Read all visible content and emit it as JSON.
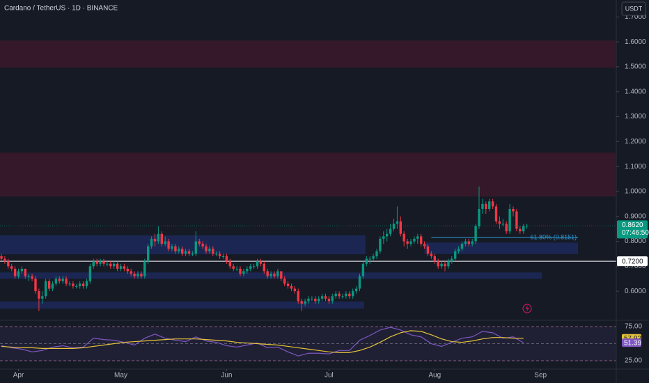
{
  "chart_data": {
    "type": "candlestick",
    "title": "Cardano / TetherUS · 1D · BINANCE",
    "currency": "USDT",
    "up_color": "#089981",
    "down_color": "#f23645",
    "grid": false,
    "ylim": [
      0.483,
      1.768
    ],
    "yticks": [
      {
        "value": 0.6,
        "label": "0.6000"
      },
      {
        "value": 0.7,
        "label": "0.7000"
      },
      {
        "value": 0.8,
        "label": "0.8000"
      },
      {
        "value": 0.9,
        "label": "0.9000"
      },
      {
        "value": 1.0,
        "label": "1.0000"
      },
      {
        "value": 1.1,
        "label": "1.1000"
      },
      {
        "value": 1.2,
        "label": "1.2000"
      },
      {
        "value": 1.3,
        "label": "1.3000"
      },
      {
        "value": 1.4,
        "label": "1.4000"
      },
      {
        "value": 1.5,
        "label": "1.5000"
      },
      {
        "value": 1.6,
        "label": "1.6000"
      },
      {
        "value": 1.7,
        "label": "1.7000"
      }
    ],
    "xticks": [
      {
        "value": 5,
        "label": "Apr"
      },
      {
        "value": 35,
        "label": "May"
      },
      {
        "value": 66,
        "label": "Jun"
      },
      {
        "value": 96,
        "label": "Jul"
      },
      {
        "value": 127,
        "label": "Aug"
      },
      {
        "value": 158,
        "label": "Sep"
      }
    ],
    "ohlc": [
      [
        0.74,
        0.75,
        0.72,
        0.73
      ],
      [
        0.73,
        0.74,
        0.71,
        0.72
      ],
      [
        0.72,
        0.73,
        0.69,
        0.7
      ],
      [
        0.7,
        0.71,
        0.68,
        0.69
      ],
      [
        0.69,
        0.7,
        0.65,
        0.66
      ],
      [
        0.66,
        0.69,
        0.65,
        0.68
      ],
      [
        0.68,
        0.7,
        0.67,
        0.69
      ],
      [
        0.69,
        0.69,
        0.65,
        0.66
      ],
      [
        0.66,
        0.67,
        0.64,
        0.66
      ],
      [
        0.66,
        0.67,
        0.64,
        0.65
      ],
      [
        0.65,
        0.66,
        0.59,
        0.6
      ],
      [
        0.6,
        0.61,
        0.52,
        0.57
      ],
      [
        0.57,
        0.6,
        0.55,
        0.58
      ],
      [
        0.58,
        0.65,
        0.57,
        0.64
      ],
      [
        0.64,
        0.65,
        0.6,
        0.61
      ],
      [
        0.61,
        0.64,
        0.6,
        0.63
      ],
      [
        0.63,
        0.66,
        0.62,
        0.65
      ],
      [
        0.65,
        0.66,
        0.63,
        0.64
      ],
      [
        0.64,
        0.66,
        0.63,
        0.65
      ],
      [
        0.65,
        0.66,
        0.62,
        0.63
      ],
      [
        0.63,
        0.64,
        0.62,
        0.63
      ],
      [
        0.63,
        0.64,
        0.61,
        0.62
      ],
      [
        0.62,
        0.63,
        0.61,
        0.62
      ],
      [
        0.62,
        0.64,
        0.61,
        0.63
      ],
      [
        0.63,
        0.64,
        0.61,
        0.62
      ],
      [
        0.62,
        0.65,
        0.61,
        0.64
      ],
      [
        0.64,
        0.71,
        0.63,
        0.7
      ],
      [
        0.7,
        0.73,
        0.69,
        0.72
      ],
      [
        0.72,
        0.73,
        0.7,
        0.71
      ],
      [
        0.71,
        0.73,
        0.7,
        0.72
      ],
      [
        0.72,
        0.73,
        0.7,
        0.71
      ],
      [
        0.71,
        0.72,
        0.7,
        0.71
      ],
      [
        0.71,
        0.72,
        0.69,
        0.7
      ],
      [
        0.7,
        0.72,
        0.69,
        0.71
      ],
      [
        0.71,
        0.72,
        0.68,
        0.69
      ],
      [
        0.69,
        0.71,
        0.68,
        0.7
      ],
      [
        0.7,
        0.71,
        0.68,
        0.69
      ],
      [
        0.69,
        0.7,
        0.67,
        0.68
      ],
      [
        0.68,
        0.69,
        0.66,
        0.67
      ],
      [
        0.67,
        0.68,
        0.65,
        0.66
      ],
      [
        0.66,
        0.68,
        0.65,
        0.67
      ],
      [
        0.67,
        0.68,
        0.65,
        0.66
      ],
      [
        0.66,
        0.73,
        0.65,
        0.72
      ],
      [
        0.72,
        0.79,
        0.71,
        0.78
      ],
      [
        0.78,
        0.82,
        0.77,
        0.81
      ],
      [
        0.81,
        0.83,
        0.78,
        0.8
      ],
      [
        0.8,
        0.86,
        0.79,
        0.83
      ],
      [
        0.83,
        0.84,
        0.78,
        0.79
      ],
      [
        0.79,
        0.82,
        0.78,
        0.8
      ],
      [
        0.8,
        0.81,
        0.76,
        0.77
      ],
      [
        0.77,
        0.79,
        0.76,
        0.78
      ],
      [
        0.78,
        0.79,
        0.75,
        0.76
      ],
      [
        0.76,
        0.78,
        0.75,
        0.77
      ],
      [
        0.77,
        0.78,
        0.74,
        0.75
      ],
      [
        0.75,
        0.77,
        0.74,
        0.76
      ],
      [
        0.76,
        0.77,
        0.74,
        0.75
      ],
      [
        0.75,
        0.76,
        0.74,
        0.75
      ],
      [
        0.75,
        0.84,
        0.74,
        0.8
      ],
      [
        0.8,
        0.81,
        0.78,
        0.79
      ],
      [
        0.79,
        0.8,
        0.77,
        0.78
      ],
      [
        0.78,
        0.79,
        0.75,
        0.76
      ],
      [
        0.76,
        0.78,
        0.75,
        0.77
      ],
      [
        0.77,
        0.78,
        0.74,
        0.75
      ],
      [
        0.75,
        0.76,
        0.74,
        0.75
      ],
      [
        0.75,
        0.76,
        0.73,
        0.74
      ],
      [
        0.74,
        0.75,
        0.73,
        0.74
      ],
      [
        0.74,
        0.75,
        0.71,
        0.72
      ],
      [
        0.72,
        0.73,
        0.69,
        0.7
      ],
      [
        0.7,
        0.71,
        0.68,
        0.69
      ],
      [
        0.69,
        0.7,
        0.68,
        0.69
      ],
      [
        0.69,
        0.7,
        0.66,
        0.67
      ],
      [
        0.67,
        0.69,
        0.66,
        0.68
      ],
      [
        0.68,
        0.7,
        0.67,
        0.69
      ],
      [
        0.69,
        0.71,
        0.68,
        0.7
      ],
      [
        0.7,
        0.71,
        0.69,
        0.7
      ],
      [
        0.7,
        0.73,
        0.69,
        0.72
      ],
      [
        0.72,
        0.73,
        0.7,
        0.71
      ],
      [
        0.71,
        0.72,
        0.67,
        0.68
      ],
      [
        0.68,
        0.69,
        0.65,
        0.66
      ],
      [
        0.66,
        0.68,
        0.65,
        0.67
      ],
      [
        0.67,
        0.68,
        0.65,
        0.66
      ],
      [
        0.66,
        0.69,
        0.65,
        0.68
      ],
      [
        0.68,
        0.68,
        0.64,
        0.65
      ],
      [
        0.65,
        0.66,
        0.62,
        0.63
      ],
      [
        0.63,
        0.64,
        0.61,
        0.62
      ],
      [
        0.62,
        0.63,
        0.6,
        0.61
      ],
      [
        0.61,
        0.62,
        0.59,
        0.6
      ],
      [
        0.6,
        0.61,
        0.55,
        0.56
      ],
      [
        0.56,
        0.57,
        0.52,
        0.55
      ],
      [
        0.55,
        0.57,
        0.54,
        0.56
      ],
      [
        0.56,
        0.58,
        0.55,
        0.57
      ],
      [
        0.57,
        0.58,
        0.56,
        0.57
      ],
      [
        0.57,
        0.58,
        0.55,
        0.56
      ],
      [
        0.56,
        0.58,
        0.55,
        0.57
      ],
      [
        0.57,
        0.59,
        0.56,
        0.58
      ],
      [
        0.58,
        0.59,
        0.56,
        0.57
      ],
      [
        0.57,
        0.58,
        0.55,
        0.56
      ],
      [
        0.56,
        0.59,
        0.55,
        0.58
      ],
      [
        0.58,
        0.6,
        0.57,
        0.59
      ],
      [
        0.59,
        0.6,
        0.57,
        0.58
      ],
      [
        0.58,
        0.59,
        0.57,
        0.58
      ],
      [
        0.58,
        0.6,
        0.57,
        0.59
      ],
      [
        0.59,
        0.6,
        0.57,
        0.58
      ],
      [
        0.58,
        0.61,
        0.57,
        0.6
      ],
      [
        0.6,
        0.62,
        0.59,
        0.61
      ],
      [
        0.61,
        0.67,
        0.6,
        0.66
      ],
      [
        0.66,
        0.72,
        0.65,
        0.71
      ],
      [
        0.71,
        0.74,
        0.7,
        0.73
      ],
      [
        0.73,
        0.74,
        0.71,
        0.73
      ],
      [
        0.73,
        0.75,
        0.72,
        0.74
      ],
      [
        0.74,
        0.77,
        0.73,
        0.76
      ],
      [
        0.76,
        0.82,
        0.75,
        0.81
      ],
      [
        0.81,
        0.84,
        0.79,
        0.82
      ],
      [
        0.82,
        0.85,
        0.8,
        0.83
      ],
      [
        0.83,
        0.87,
        0.82,
        0.85
      ],
      [
        0.85,
        0.89,
        0.84,
        0.87
      ],
      [
        0.87,
        0.94,
        0.85,
        0.88
      ],
      [
        0.88,
        0.9,
        0.82,
        0.83
      ],
      [
        0.83,
        0.84,
        0.78,
        0.8
      ],
      [
        0.8,
        0.81,
        0.77,
        0.79
      ],
      [
        0.79,
        0.81,
        0.78,
        0.8
      ],
      [
        0.8,
        0.82,
        0.79,
        0.81
      ],
      [
        0.81,
        0.83,
        0.79,
        0.82
      ],
      [
        0.82,
        0.83,
        0.78,
        0.79
      ],
      [
        0.79,
        0.8,
        0.77,
        0.78
      ],
      [
        0.78,
        0.79,
        0.74,
        0.75
      ],
      [
        0.75,
        0.76,
        0.73,
        0.74
      ],
      [
        0.74,
        0.75,
        0.71,
        0.72
      ],
      [
        0.72,
        0.73,
        0.69,
        0.7
      ],
      [
        0.7,
        0.72,
        0.69,
        0.71
      ],
      [
        0.71,
        0.72,
        0.68,
        0.7
      ],
      [
        0.7,
        0.73,
        0.69,
        0.72
      ],
      [
        0.72,
        0.74,
        0.71,
        0.73
      ],
      [
        0.73,
        0.77,
        0.72,
        0.76
      ],
      [
        0.76,
        0.78,
        0.75,
        0.77
      ],
      [
        0.77,
        0.8,
        0.76,
        0.79
      ],
      [
        0.79,
        0.81,
        0.78,
        0.8
      ],
      [
        0.8,
        0.81,
        0.78,
        0.79
      ],
      [
        0.79,
        0.81,
        0.78,
        0.8
      ],
      [
        0.8,
        0.87,
        0.79,
        0.86
      ],
      [
        0.86,
        1.02,
        0.85,
        0.93
      ],
      [
        0.93,
        0.97,
        0.91,
        0.95
      ],
      [
        0.95,
        0.96,
        0.91,
        0.93
      ],
      [
        0.93,
        0.97,
        0.92,
        0.96
      ],
      [
        0.96,
        0.97,
        0.93,
        0.94
      ],
      [
        0.94,
        0.95,
        0.87,
        0.88
      ],
      [
        0.88,
        0.9,
        0.85,
        0.87
      ],
      [
        0.87,
        0.89,
        0.86,
        0.87
      ],
      [
        0.87,
        0.88,
        0.83,
        0.84
      ],
      [
        0.84,
        0.95,
        0.83,
        0.93
      ],
      [
        0.93,
        0.94,
        0.9,
        0.92
      ],
      [
        0.92,
        0.93,
        0.84,
        0.85
      ],
      [
        0.85,
        0.86,
        0.83,
        0.84
      ],
      [
        0.84,
        0.87,
        0.83,
        0.86
      ],
      [
        0.86,
        0.87,
        0.85,
        0.862
      ]
    ],
    "last_close_label": "0.8620",
    "countdown": "07:46:50",
    "hline": {
      "value": 0.72,
      "label": "0.7200",
      "color": "#ffffff"
    },
    "fib": {
      "value": 0.8151,
      "label": "61.80% (0.8151)",
      "from": 126,
      "to": 169,
      "color": "#2a9ad6"
    },
    "zones": [
      {
        "from": -1,
        "to": 180,
        "low": 1.4966,
        "high": 1.6056,
        "color": "#3b1a2c"
      },
      {
        "from": -1,
        "to": 180,
        "low": 0.9799,
        "high": 1.1559,
        "color": "#3b1a2c"
      },
      {
        "from": -1,
        "to": 106.7,
        "low": 0.748,
        "high": 0.8235,
        "color": "#1c2a5a"
      },
      {
        "from": 124,
        "to": 169,
        "low": 0.749,
        "high": 0.795,
        "color": "#1c2a5a"
      },
      {
        "from": -1,
        "to": 158.4,
        "low": 0.65,
        "high": 0.675,
        "color": "#1c2a5a"
      },
      {
        "from": -1,
        "to": 106.3,
        "low": 0.53,
        "high": 0.558,
        "color": "#1c2a5a"
      }
    ],
    "rsi": {
      "x": [
        0,
        3,
        6,
        9,
        12,
        15,
        18,
        21,
        24,
        27,
        30,
        33,
        36,
        39,
        42,
        45,
        48,
        51,
        54,
        57,
        60,
        63,
        66,
        69,
        72,
        75,
        78,
        81,
        84,
        87,
        90,
        93,
        96,
        99,
        102,
        105,
        108,
        111,
        114,
        117,
        120,
        123,
        126,
        129,
        132,
        135,
        138,
        141,
        144,
        147,
        150,
        153
      ],
      "values": [
        47,
        44,
        42,
        38,
        40,
        45,
        47,
        44,
        45,
        58,
        56,
        55,
        52,
        48,
        58,
        64,
        58,
        55,
        53,
        60,
        54,
        52,
        47,
        45,
        48,
        51,
        44,
        45,
        38,
        32,
        36,
        36,
        35,
        40,
        40,
        55,
        62,
        70,
        74,
        70,
        63,
        60,
        50,
        46,
        52,
        58,
        60,
        68,
        66,
        58,
        60,
        51.39
      ],
      "color": "#7e57c2",
      "ma": [
        46,
        45,
        44,
        44,
        43,
        43,
        43,
        43,
        44,
        46,
        48,
        50,
        52,
        53,
        54,
        55,
        56,
        57,
        57,
        57,
        56,
        55,
        54,
        52,
        51,
        50,
        49,
        48,
        46,
        44,
        42,
        40,
        38,
        37,
        37,
        40,
        45,
        52,
        60,
        66,
        69,
        68,
        63,
        57,
        53,
        52,
        54,
        57,
        59,
        59,
        58,
        57.92
      ],
      "ma_color": "#e5c33a",
      "ylim": [
        12.8,
        84.2
      ],
      "yticks": [
        {
          "value": 75,
          "label": "75.00"
        },
        {
          "value": 25,
          "label": "25.00"
        }
      ],
      "midline": 50
    }
  }
}
